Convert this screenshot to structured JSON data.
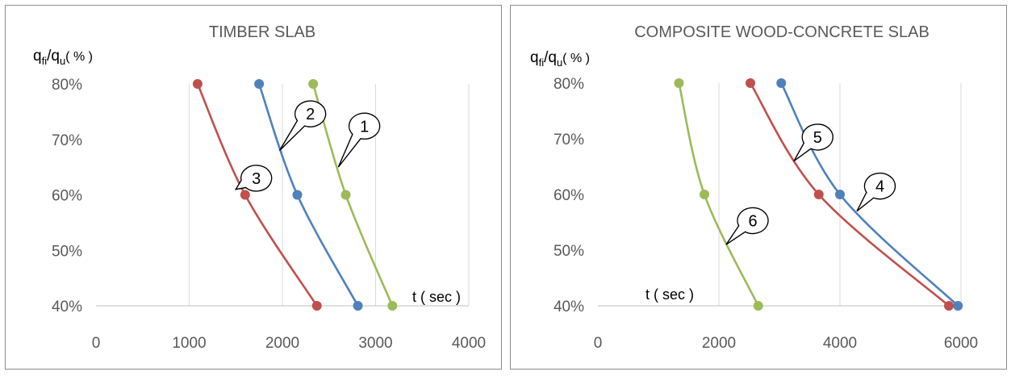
{
  "chart_data": [
    {
      "type": "line",
      "title": "TIMBER  SLAB",
      "ylabel": {
        "main": "q",
        "sub": "fi",
        "sep": "/q",
        "sub2": "u",
        "tail": "( % )"
      },
      "xlabel": "t ( sec )",
      "xlim": [
        0,
        4000
      ],
      "ylim": [
        40,
        80
      ],
      "xticks": [
        0,
        1000,
        2000,
        3000,
        4000
      ],
      "xtick_labels": [
        "0",
        "1000",
        "2000",
        "3000",
        "4000"
      ],
      "yticks": [
        40,
        50,
        60,
        70,
        80
      ],
      "ytick_labels": [
        "40%",
        "50%",
        "60%",
        "70%",
        "80%"
      ],
      "grid": "vertical",
      "series": [
        {
          "name": "1",
          "color": "#9bbb59",
          "x": [
            2330,
            2680,
            3180
          ],
          "y": [
            80,
            60,
            40
          ]
        },
        {
          "name": "2",
          "color": "#4f81bd",
          "x": [
            1750,
            2160,
            2810
          ],
          "y": [
            80,
            60,
            40
          ]
        },
        {
          "name": "3",
          "color": "#c0504d",
          "x": [
            1090,
            1600,
            2370
          ],
          "y": [
            80,
            60,
            40
          ]
        }
      ],
      "callouts": [
        {
          "label": "1",
          "x": 2880,
          "y": 72.4,
          "pointer": [
            2600,
            65
          ]
        },
        {
          "label": "2",
          "x": 2300,
          "y": 74.6,
          "pointer": [
            1970,
            68
          ]
        },
        {
          "label": "3",
          "x": 1720,
          "y": 63.0,
          "pointer": [
            1500,
            61
          ]
        }
      ]
    },
    {
      "type": "line",
      "title": "COMPOSITE WOOD-CONCRETE  SLAB",
      "ylabel": {
        "main": "q",
        "sub": "fi",
        "sep": "/q",
        "sub2": "u",
        "tail": "( % )"
      },
      "xlabel": "t ( sec )",
      "xlim": [
        0,
        6000
      ],
      "ylim": [
        40,
        80
      ],
      "xticks": [
        0,
        2000,
        4000,
        6000
      ],
      "xtick_labels": [
        "0",
        "2000",
        "4000",
        "6000"
      ],
      "yticks": [
        40,
        50,
        60,
        70,
        80
      ],
      "ytick_labels": [
        "40%",
        "50%",
        "60%",
        "70%",
        "80%"
      ],
      "grid": "vertical",
      "series": [
        {
          "name": "4",
          "color": "#4f81bd",
          "x": [
            3030,
            4000,
            5950
          ],
          "y": [
            80,
            60,
            40
          ]
        },
        {
          "name": "5",
          "color": "#c0504d",
          "x": [
            2520,
            3650,
            5800
          ],
          "y": [
            80,
            60,
            40
          ]
        },
        {
          "name": "6",
          "color": "#9bbb59",
          "x": [
            1340,
            1760,
            2650
          ],
          "y": [
            80,
            60,
            40
          ]
        }
      ],
      "callouts": [
        {
          "label": "4",
          "x": 4660,
          "y": 61.5,
          "pointer": [
            4280,
            57
          ]
        },
        {
          "label": "5",
          "x": 3630,
          "y": 70.3,
          "pointer": [
            3240,
            66
          ]
        },
        {
          "label": "6",
          "x": 2560,
          "y": 55.3,
          "pointer": [
            2120,
            51
          ]
        }
      ]
    }
  ]
}
